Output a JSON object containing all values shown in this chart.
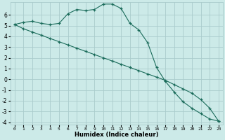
{
  "xlabel": "Humidex (Indice chaleur)",
  "bg_color": "#cceae8",
  "grid_color": "#aacccc",
  "line_color": "#1a6b5a",
  "curve1_x": [
    0,
    1,
    2,
    3,
    4,
    5,
    6,
    7,
    8,
    9,
    10,
    11,
    12,
    13,
    14,
    15,
    16,
    17,
    18,
    19,
    20,
    21,
    22,
    23
  ],
  "curve1_y": [
    5.1,
    5.3,
    5.4,
    5.2,
    5.1,
    5.2,
    6.1,
    6.5,
    6.4,
    6.5,
    7.0,
    7.0,
    6.6,
    5.2,
    4.6,
    3.4,
    1.1,
    -0.2,
    -1.2,
    -2.1,
    -2.7,
    -3.2,
    -3.7,
    -3.9
  ],
  "curve2_x": [
    0,
    1,
    2,
    3,
    4,
    5,
    6,
    7,
    8,
    9,
    10,
    11,
    12,
    13,
    14,
    15,
    16,
    17,
    18,
    19,
    20,
    21,
    22,
    23
  ],
  "curve2_y": [
    5.1,
    4.7,
    4.4,
    4.1,
    3.8,
    3.5,
    3.2,
    2.9,
    2.6,
    2.3,
    2.0,
    1.7,
    1.4,
    1.1,
    0.8,
    0.5,
    0.2,
    -0.1,
    -0.5,
    -0.9,
    -1.3,
    -1.9,
    -2.7,
    -3.9
  ],
  "ylim": [
    -4,
    7
  ],
  "xlim": [
    -0.5,
    23.5
  ],
  "yticks": [
    -4,
    -3,
    -2,
    -1,
    0,
    1,
    2,
    3,
    4,
    5,
    6
  ],
  "xticks": [
    0,
    1,
    2,
    3,
    4,
    5,
    6,
    7,
    8,
    9,
    10,
    11,
    12,
    13,
    14,
    15,
    16,
    17,
    18,
    19,
    20,
    21,
    22,
    23
  ]
}
